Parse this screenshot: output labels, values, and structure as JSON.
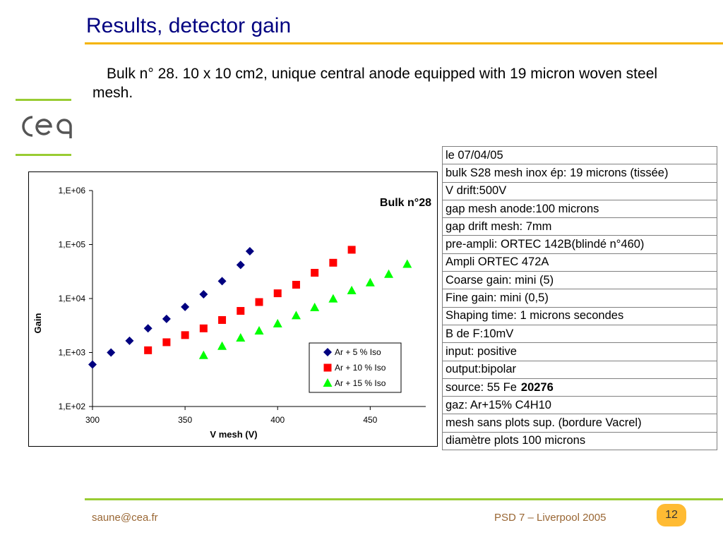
{
  "slide": {
    "title": "Results, detector gain",
    "subtitle": "Bulk n° 28. 10 x 10 cm2, unique central anode equipped with 19 micron woven steel mesh.",
    "logo_text": "cea",
    "footer_left": "saune@cea.fr",
    "footer_right": "PSD 7 – Liverpool 2005",
    "page_number": "12"
  },
  "colors": {
    "title": "#000080",
    "accent_yellow": "#f5b400",
    "accent_green": "#99cc33",
    "footer_text": "#996633",
    "badge": "#ffbb33"
  },
  "info_table": {
    "rows": [
      "le 07/04/05",
      "bulk S28 mesh inox ép: 19 microns (tissée)",
      "V drift:500V",
      "gap mesh anode:100 microns",
      "gap drift mesh: 7mm",
      "pre-ampli: ORTEC 142B(blindé n°460)",
      "Ampli ORTEC 472A",
      "Coarse gain: mini (5)",
      "Fine gain: mini (0,5)",
      "Shaping time: 1 microns secondes",
      "B de F:10mV",
      "input: positive",
      "output:bipolar",
      "source: 55 Fe",
      "gaz: Ar+15% C4H10",
      "mesh sans plots sup. (bordure Vacrel)",
      "diamètre plots 100 microns"
    ],
    "source_bold": "20276"
  },
  "chart_data": {
    "type": "scatter",
    "title": "Bulk n°28",
    "xlabel": "V mesh (V)",
    "ylabel": "Gain",
    "xlim": [
      300,
      480
    ],
    "ylim": [
      100,
      1000000
    ],
    "yscale": "log",
    "x_ticks": [
      "300",
      "350",
      "400",
      "450"
    ],
    "y_ticks": [
      "1,E+02",
      "1,E+03",
      "1,E+04",
      "1,E+05",
      "1,E+06"
    ],
    "legend_position": "bottom-right",
    "series": [
      {
        "name": "Ar + 5 % Iso",
        "marker": "diamond",
        "color": "#000080",
        "x": [
          300,
          310,
          320,
          330,
          340,
          350,
          360,
          370,
          380,
          385
        ],
        "y": [
          600,
          1000,
          1650,
          2800,
          4200,
          7000,
          12000,
          21000,
          42000,
          75000
        ]
      },
      {
        "name": "Ar + 10 % Iso",
        "marker": "square",
        "color": "#ff0000",
        "x": [
          330,
          340,
          350,
          360,
          370,
          380,
          390,
          400,
          410,
          420,
          430,
          440
        ],
        "y": [
          1100,
          1550,
          2100,
          2800,
          4000,
          5900,
          8600,
          12500,
          18000,
          30000,
          46000,
          80000
        ]
      },
      {
        "name": "Ar + 15 % Iso",
        "marker": "triangle",
        "color": "#00ff00",
        "x": [
          360,
          370,
          380,
          390,
          400,
          410,
          420,
          430,
          440,
          450,
          460,
          470
        ],
        "y": [
          880,
          1300,
          1850,
          2500,
          3400,
          4800,
          6800,
          9800,
          14000,
          19500,
          28000,
          43000
        ]
      }
    ]
  }
}
